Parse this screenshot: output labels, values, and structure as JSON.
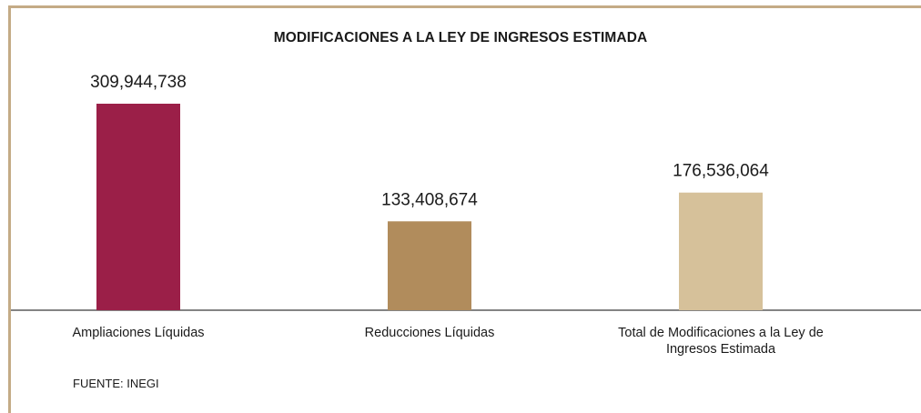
{
  "chart_data": {
    "type": "bar",
    "title": "MODIFICACIONES A LA LEY DE INGRESOS ESTIMADA",
    "categories": [
      [
        "Ampliaciones Líquidas"
      ],
      [
        "Reducciones Líquidas"
      ],
      [
        "Total de Modificaciones a la Ley de",
        "Ingresos Estimada"
      ]
    ],
    "values": [
      309944738,
      133408674,
      176536064
    ],
    "value_labels": [
      "309,944,738",
      "133,408,674",
      "176,536,064"
    ],
    "colors": [
      "#9b1f48",
      "#b18c5c",
      "#d6c19a"
    ],
    "ylim": [
      0,
      320000000
    ],
    "grid": false,
    "legend": "none",
    "source": "FUENTE: INEGI"
  }
}
